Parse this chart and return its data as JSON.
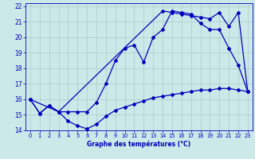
{
  "xlabel": "Graphe des températures (°C)",
  "background_color": "#cce8e8",
  "grid_color": "#aacccc",
  "line_color": "#0000bb",
  "xlim": [
    -0.5,
    23.5
  ],
  "ylim": [
    14,
    22.2
  ],
  "xticks": [
    0,
    1,
    2,
    3,
    4,
    5,
    6,
    7,
    8,
    9,
    10,
    11,
    12,
    13,
    14,
    15,
    16,
    17,
    18,
    19,
    20,
    21,
    22,
    23
  ],
  "yticks": [
    14,
    15,
    16,
    17,
    18,
    19,
    20,
    21,
    22
  ],
  "series": [
    {
      "x": [
        0,
        1,
        2,
        3,
        4,
        5,
        6,
        7,
        8,
        9,
        10,
        11,
        12,
        13,
        14,
        15,
        16,
        17,
        18,
        19,
        20,
        21,
        22,
        23
      ],
      "y": [
        16.0,
        15.1,
        15.6,
        15.2,
        14.6,
        14.3,
        14.1,
        14.4,
        14.9,
        15.3,
        15.5,
        15.7,
        15.9,
        16.1,
        16.2,
        16.3,
        16.4,
        16.5,
        16.6,
        16.6,
        16.7,
        16.7,
        16.6,
        16.5
      ]
    },
    {
      "x": [
        0,
        1,
        2,
        3,
        4,
        5,
        6,
        7,
        8,
        9,
        10,
        11,
        12,
        13,
        14,
        15,
        16,
        17,
        18,
        19,
        20,
        21,
        22,
        23
      ],
      "y": [
        16.0,
        15.1,
        15.6,
        15.2,
        15.2,
        15.2,
        15.2,
        15.8,
        17.0,
        18.5,
        19.3,
        19.5,
        18.4,
        20.0,
        20.5,
        21.7,
        21.6,
        21.5,
        20.9,
        20.5,
        20.5,
        19.3,
        18.2,
        16.5
      ]
    },
    {
      "x": [
        0,
        3,
        14,
        15,
        16,
        17,
        18,
        19,
        20,
        21,
        22,
        23
      ],
      "y": [
        16.0,
        15.2,
        21.7,
        21.6,
        21.5,
        21.4,
        21.3,
        21.2,
        21.6,
        20.7,
        21.6,
        16.5
      ]
    }
  ]
}
